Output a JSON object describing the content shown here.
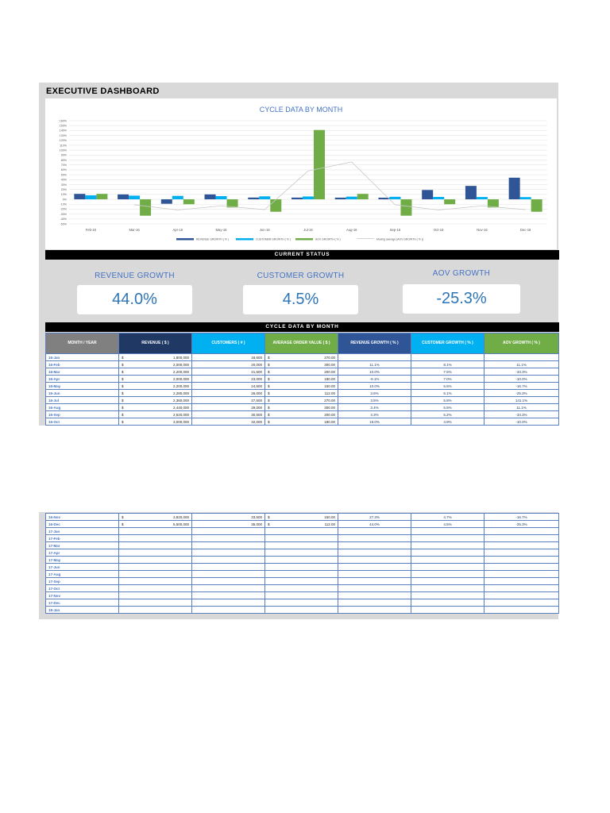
{
  "dashboard_title": "EXECUTIVE DASHBOARD",
  "chart_data": {
    "type": "bar",
    "title": "CYCLE DATA BY MONTH",
    "categories": [
      "Feb-16",
      "Mar-16",
      "Apr-16",
      "May-16",
      "Jun-16",
      "Jul-16",
      "Aug-16",
      "Sep-16",
      "Oct-16",
      "Nov-16",
      "Dec-16"
    ],
    "y_ticks": [
      "160%",
      "150%",
      "140%",
      "130%",
      "120%",
      "110%",
      "100%",
      "90%",
      "80%",
      "70%",
      "60%",
      "50%",
      "40%",
      "30%",
      "20%",
      "10%",
      "0%",
      "-10%",
      "-20%",
      "-30%",
      "-40%",
      "-50%"
    ],
    "ylim": [
      -50,
      160
    ],
    "grid": true,
    "legend_position": "bottom",
    "series": [
      {
        "name": "REVENUE GROWTH ( % )",
        "type": "bar",
        "color": "#2f5597",
        "values": [
          11.1,
          10.0,
          -9.1,
          10.0,
          3.6,
          3.5,
          3.4,
          3.3,
          19.0,
          27.3,
          44.0
        ]
      },
      {
        "name": "CUSTOMER GROWTH ( % )",
        "type": "bar",
        "color": "#00b0f0",
        "values": [
          8.1,
          7.5,
          7.0,
          6.5,
          6.1,
          5.8,
          5.5,
          5.2,
          4.9,
          4.7,
          4.5
        ]
      },
      {
        "name": "AOV GROWTH ( % )",
        "type": "bar",
        "color": "#70ad47",
        "values": [
          11.1,
          -33.3,
          -10.0,
          -16.7,
          -25.3,
          141.1,
          11.1,
          -33.3,
          -10.0,
          -16.7,
          -25.3
        ]
      },
      {
        "name": "Moving average (AOV GROWTH ( % ))",
        "type": "line",
        "color": "#c9c9c9",
        "values": [
          null,
          -11.1,
          -21.7,
          -13.3,
          -21.0,
          57.9,
          76.1,
          -11.1,
          -21.7,
          -13.3,
          -21.0
        ]
      }
    ]
  },
  "current_status": {
    "header": "CURRENT STATUS",
    "kpis": [
      {
        "label": "REVENUE GROWTH",
        "value": "44.0%"
      },
      {
        "label": "CUSTOMER GROWTH",
        "value": "4.5%"
      },
      {
        "label": "AOV GROWTH",
        "value": "-25.3%"
      }
    ]
  },
  "table": {
    "header": "CYCLE DATA BY MONTH",
    "columns": [
      {
        "label": "MONTH / YEAR",
        "bg": "#808080"
      },
      {
        "label": "REVENUE ( $ )",
        "bg": "#1f3864"
      },
      {
        "label": "CUSTOMERS ( # )",
        "bg": "#00b0f0"
      },
      {
        "label": "AVERAGE ORDER VALUE ( $ )",
        "bg": "#70ad47"
      },
      {
        "label": "REVENUE GROWTH ( % )",
        "bg": "#2f5597"
      },
      {
        "label": "CUSTOMER GROWTH ( % )",
        "bg": "#00b0f0"
      },
      {
        "label": "AOV GROWTH ( % )",
        "bg": "#70ad47"
      }
    ],
    "currency": "$",
    "rows": [
      {
        "month": "16-Jan",
        "revenue": "1,800,000",
        "customers": "18,500",
        "aov": "270.00",
        "rev_growth": "",
        "cust_growth": "",
        "aov_growth": ""
      },
      {
        "month": "16-Feb",
        "revenue": "2,000,000",
        "customers": "20,000",
        "aov": "300.00",
        "rev_growth": "11.1%",
        "cust_growth": "8.1%",
        "aov_growth": "11.1%"
      },
      {
        "month": "16-Mar",
        "revenue": "2,200,000",
        "customers": "21,500",
        "aov": "200.00",
        "rev_growth": "10.0%",
        "cust_growth": "7.5%",
        "aov_growth": "-33.3%"
      },
      {
        "month": "16-Apr",
        "revenue": "2,000,000",
        "customers": "23,000",
        "aov": "180.00",
        "rev_growth": "-9.1%",
        "cust_growth": "7.0%",
        "aov_growth": "-10.0%"
      },
      {
        "month": "16-May",
        "revenue": "2,200,000",
        "customers": "24,500",
        "aov": "150.00",
        "rev_growth": "10.0%",
        "cust_growth": "6.5%",
        "aov_growth": "-16.7%"
      },
      {
        "month": "16-Jun",
        "revenue": "2,280,000",
        "customers": "26,000",
        "aov": "112.00",
        "rev_growth": "3.6%",
        "cust_growth": "6.1%",
        "aov_growth": "-25.3%"
      },
      {
        "month": "16-Jul",
        "revenue": "2,360,000",
        "customers": "27,500",
        "aov": "270.00",
        "rev_growth": "3.5%",
        "cust_growth": "5.8%",
        "aov_growth": "141.1%"
      },
      {
        "month": "16-Aug",
        "revenue": "2,440,000",
        "customers": "29,000",
        "aov": "300.00",
        "rev_growth": "3.4%",
        "cust_growth": "5.5%",
        "aov_growth": "11.1%"
      },
      {
        "month": "16-Sep",
        "revenue": "2,520,000",
        "customers": "30,500",
        "aov": "200.00",
        "rev_growth": "3.3%",
        "cust_growth": "5.2%",
        "aov_growth": "-33.3%"
      },
      {
        "month": "16-Oct",
        "revenue": "3,000,000",
        "customers": "32,000",
        "aov": "180.00",
        "rev_growth": "19.0%",
        "cust_growth": "4.9%",
        "aov_growth": "-10.0%"
      }
    ],
    "rows_page2": [
      {
        "month": "16-Nov",
        "revenue": "3,820,000",
        "customers": "33,500",
        "aov": "150.00",
        "rev_growth": "27.3%",
        "cust_growth": "4.7%",
        "aov_growth": "-16.7%"
      },
      {
        "month": "16-Dec",
        "revenue": "5,500,000",
        "customers": "35,000",
        "aov": "112.00",
        "rev_growth": "44.0%",
        "cust_growth": "4.5%",
        "aov_growth": "-25.3%"
      },
      {
        "month": "17-Jan"
      },
      {
        "month": "17-Feb"
      },
      {
        "month": "17-Mar"
      },
      {
        "month": "17-Apr"
      },
      {
        "month": "17-May"
      },
      {
        "month": "17-Jun"
      },
      {
        "month": "17-Aug"
      },
      {
        "month": "17-Sep"
      },
      {
        "month": "17-Oct"
      },
      {
        "month": "17-Nov"
      },
      {
        "month": "17-Dec"
      },
      {
        "month": "18-Jan"
      }
    ]
  }
}
